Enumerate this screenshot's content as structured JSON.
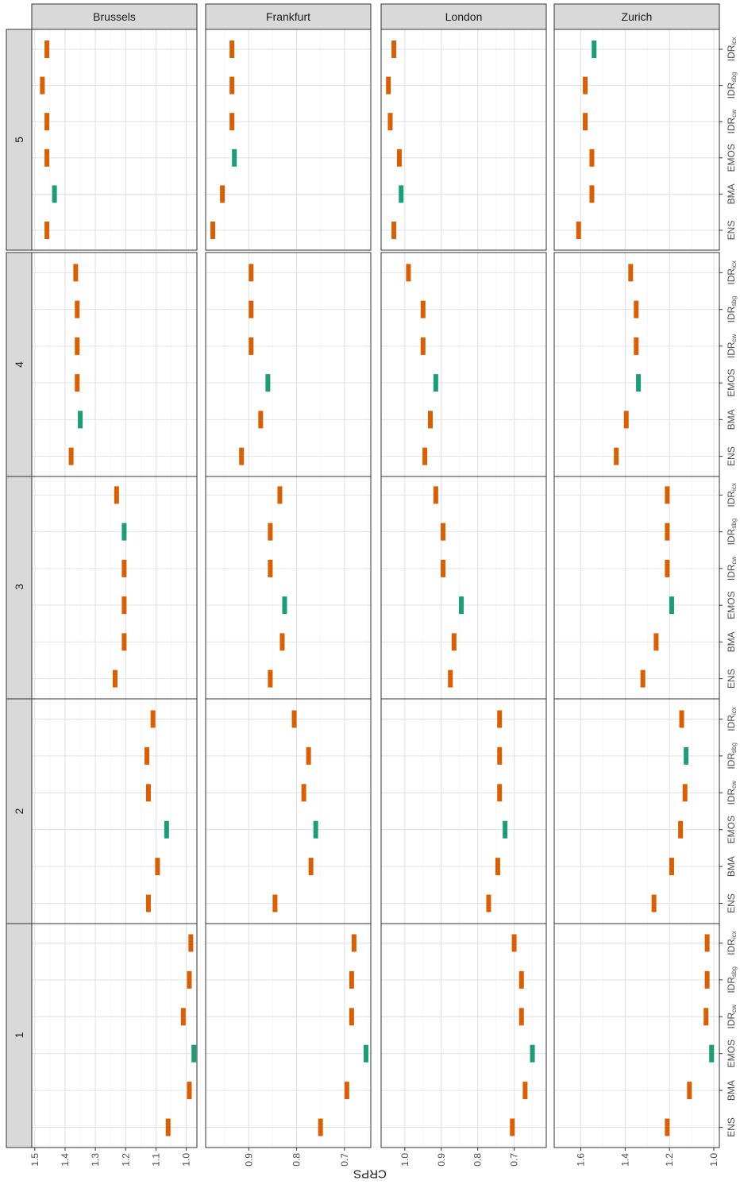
{
  "chart_data": {
    "type": "bar",
    "ylabel": "CRPS",
    "orientation_note": "rotated",
    "columns": [
      "Brussels",
      "Frankfurt",
      "London",
      "Zurich"
    ],
    "rows": [
      "1",
      "2",
      "3",
      "4",
      "5"
    ],
    "methods": [
      {
        "base": "ENS",
        "sub": ""
      },
      {
        "base": "BMA",
        "sub": ""
      },
      {
        "base": "EMOS",
        "sub": ""
      },
      {
        "base": "IDR",
        "sub": "cw"
      },
      {
        "base": "IDR",
        "sub": "sbg"
      },
      {
        "base": "IDR",
        "sub": "icx"
      }
    ],
    "best_color": "#1b9e77",
    "other_color": "#d95f02",
    "column_axes": [
      {
        "name": "Brussels",
        "limits": [
          1.51,
          0.965
        ],
        "ticks": [
          1.5,
          1.4,
          1.3,
          1.2,
          1.1,
          1.0
        ],
        "tick_labels": [
          "1.5",
          "1.4",
          "1.3",
          "1.2",
          "1.1",
          "1.0"
        ]
      },
      {
        "name": "Frankfurt",
        "limits": [
          0.99,
          0.645
        ],
        "ticks": [
          0.9,
          0.8,
          0.7
        ],
        "tick_labels": [
          "0.9",
          "0.8",
          "0.7"
        ]
      },
      {
        "name": "London",
        "limits": [
          1.065,
          0.612
        ],
        "ticks": [
          1.0,
          0.9,
          0.8,
          0.7
        ],
        "tick_labels": [
          "1.0",
          "0.9",
          "0.8",
          "0.7"
        ]
      },
      {
        "name": "Zurich",
        "limits": [
          1.72,
          0.975
        ],
        "ticks": [
          1.6,
          1.4,
          1.2,
          1.0
        ],
        "tick_labels": [
          "1.6",
          "1.4",
          "1.2",
          "1.0"
        ]
      }
    ],
    "panels": [
      {
        "row": "1",
        "column": "Brussels",
        "values": [
          1.06,
          0.99,
          0.975,
          1.01,
          0.99,
          0.985
        ],
        "best": 2
      },
      {
        "row": "1",
        "column": "Frankfurt",
        "values": [
          0.75,
          0.695,
          0.655,
          0.685,
          0.685,
          0.68
        ],
        "best": 2
      },
      {
        "row": "1",
        "column": "London",
        "values": [
          0.705,
          0.67,
          0.65,
          0.68,
          0.68,
          0.7
        ],
        "best": 2
      },
      {
        "row": "1",
        "column": "Zurich",
        "values": [
          1.21,
          1.11,
          1.01,
          1.035,
          1.03,
          1.03
        ],
        "best": 2
      },
      {
        "row": "2",
        "column": "Brussels",
        "values": [
          1.125,
          1.095,
          1.065,
          1.125,
          1.13,
          1.11
        ],
        "best": 2
      },
      {
        "row": "2",
        "column": "Frankfurt",
        "values": [
          0.845,
          0.77,
          0.76,
          0.785,
          0.775,
          0.805
        ],
        "best": 2
      },
      {
        "row": "2",
        "column": "London",
        "values": [
          0.77,
          0.745,
          0.725,
          0.74,
          0.74,
          0.74
        ],
        "best": 2
      },
      {
        "row": "2",
        "column": "Zurich",
        "values": [
          1.27,
          1.19,
          1.15,
          1.13,
          1.125,
          1.145
        ],
        "best": 4
      },
      {
        "row": "3",
        "column": "Brussels",
        "values": [
          1.235,
          1.205,
          1.205,
          1.205,
          1.205,
          1.23
        ],
        "best": 4
      },
      {
        "row": "3",
        "column": "Frankfurt",
        "values": [
          0.855,
          0.83,
          0.825,
          0.855,
          0.855,
          0.835
        ],
        "best": 2
      },
      {
        "row": "3",
        "column": "London",
        "values": [
          0.875,
          0.865,
          0.845,
          0.895,
          0.895,
          0.915
        ],
        "best": 2
      },
      {
        "row": "3",
        "column": "Zurich",
        "values": [
          1.32,
          1.26,
          1.19,
          1.21,
          1.21,
          1.21
        ],
        "best": 2
      },
      {
        "row": "4",
        "column": "Brussels",
        "values": [
          1.38,
          1.35,
          1.36,
          1.36,
          1.36,
          1.365
        ],
        "best": 1
      },
      {
        "row": "4",
        "column": "Frankfurt",
        "values": [
          0.915,
          0.875,
          0.86,
          0.895,
          0.895,
          0.895
        ],
        "best": 2
      },
      {
        "row": "4",
        "column": "London",
        "values": [
          0.945,
          0.93,
          0.915,
          0.95,
          0.95,
          0.99
        ],
        "best": 2
      },
      {
        "row": "4",
        "column": "Zurich",
        "values": [
          1.44,
          1.395,
          1.34,
          1.35,
          1.35,
          1.375
        ],
        "best": 2
      },
      {
        "row": "5",
        "column": "Brussels",
        "values": [
          1.46,
          1.435,
          1.46,
          1.46,
          1.475,
          1.46
        ],
        "best": 1
      },
      {
        "row": "5",
        "column": "Frankfurt",
        "values": [
          0.975,
          0.955,
          0.93,
          0.935,
          0.935,
          0.935
        ],
        "best": 2
      },
      {
        "row": "5",
        "column": "London",
        "values": [
          1.03,
          1.01,
          1.015,
          1.04,
          1.045,
          1.03
        ],
        "best": 1
      },
      {
        "row": "5",
        "column": "Zurich",
        "values": [
          1.61,
          1.55,
          1.55,
          1.58,
          1.58,
          1.54
        ],
        "best": 5
      }
    ]
  }
}
